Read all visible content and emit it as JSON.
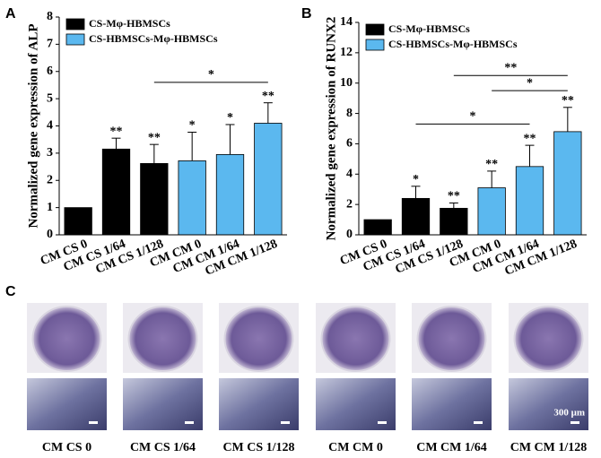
{
  "chart_data": [
    {
      "panel": "A",
      "type": "bar",
      "ylabel": "Normalized gene expression of ALP",
      "categories": [
        "CM CS 0",
        "CM CS 1/64",
        "CM CS 1/128",
        "CM CM 0",
        "CM CM 1/64",
        "CM CM 1/128"
      ],
      "series": [
        {
          "name": "CS-Mφ-HBMSCs",
          "color": "#000000",
          "values": [
            1.0,
            3.15,
            2.62,
            null,
            null,
            null
          ],
          "errors": [
            null,
            0.4,
            0.7,
            null,
            null,
            null
          ],
          "stars": [
            null,
            "**",
            "**",
            null,
            null,
            null
          ]
        },
        {
          "name": "CS-HBMSCs-Mφ-HBMSCs",
          "color": "#5bb8ef",
          "values": [
            null,
            null,
            null,
            2.72,
            2.95,
            4.1
          ],
          "errors": [
            null,
            null,
            null,
            1.05,
            1.1,
            0.75
          ],
          "stars": [
            null,
            null,
            null,
            "*",
            "*",
            "**"
          ]
        }
      ],
      "ylim": [
        0,
        8
      ],
      "yticks": [
        0,
        1,
        2,
        3,
        4,
        5,
        6,
        7,
        8
      ],
      "legend": "upper left",
      "brackets": [
        {
          "from": "CM CS 1/128",
          "to": "CM CM 1/128",
          "y": 5.6,
          "label": "*"
        }
      ]
    },
    {
      "panel": "B",
      "type": "bar",
      "ylabel": "Normalized gene expression of RUNX2",
      "categories": [
        "CM CS 0",
        "CM CS 1/64",
        "CM CS 1/128",
        "CM CM 0",
        "CM CM 1/64",
        "CM CM 1/128"
      ],
      "series": [
        {
          "name": "CS-Mφ-HBMSCs",
          "color": "#000000",
          "values": [
            1.0,
            2.4,
            1.75,
            null,
            null,
            null
          ],
          "errors": [
            null,
            0.8,
            0.35,
            null,
            null,
            null
          ],
          "stars": [
            null,
            "*",
            "**",
            null,
            null,
            null
          ]
        },
        {
          "name": "CS-HBMSCs-Mφ-HBMSCs",
          "color": "#5bb8ef",
          "values": [
            null,
            null,
            null,
            3.1,
            4.5,
            6.8
          ],
          "errors": [
            null,
            null,
            null,
            1.1,
            1.4,
            1.6
          ],
          "stars": [
            null,
            null,
            null,
            "**",
            "**",
            "**"
          ]
        }
      ],
      "ylim": [
        0,
        14
      ],
      "yticks": [
        0,
        2,
        4,
        6,
        8,
        10,
        12,
        14
      ],
      "legend": "upper left",
      "brackets": [
        {
          "from": "CM CS 1/64",
          "to": "CM CM 1/64",
          "y": 7.3,
          "label": "*"
        },
        {
          "from": "CM CM 0",
          "to": "CM CM 1/128",
          "y": 9.5,
          "label": "*"
        },
        {
          "from": "CM CS 1/128",
          "to": "CM CM 1/128",
          "y": 10.5,
          "label": "**"
        }
      ]
    }
  ],
  "panel_c": {
    "label": "C",
    "captions": [
      "CM CS 0",
      "CM CS 1/64",
      "CM CS 1/128",
      "CM CM 0",
      "CM CM 1/64",
      "CM CM 1/128"
    ],
    "scale_label": "300 μm"
  }
}
